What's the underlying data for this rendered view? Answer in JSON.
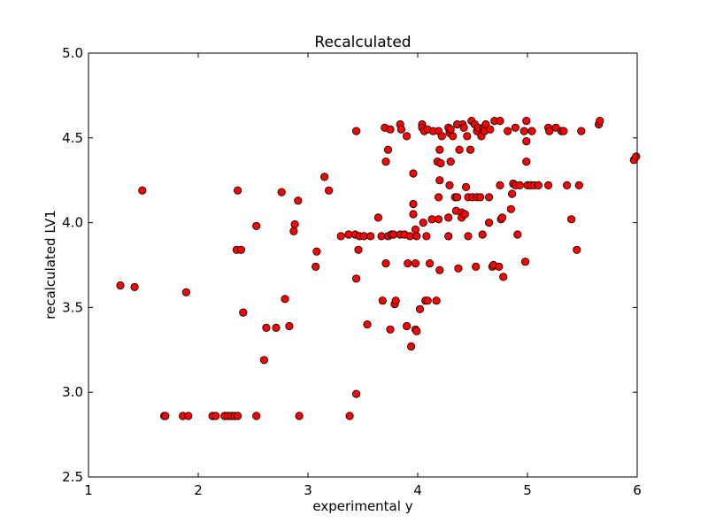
{
  "chart_data": {
    "type": "scatter",
    "title": "Recalculated",
    "xlabel": "experimental y",
    "ylabel": "recalculated LV1",
    "xlim": [
      1,
      6
    ],
    "ylim": [
      2.5,
      5.0
    ],
    "xticks": [
      "1",
      "2",
      "3",
      "4",
      "5",
      "6"
    ],
    "yticks": [
      "2.5",
      "3.0",
      "3.5",
      "4.0",
      "4.5",
      "5.0"
    ],
    "grid": false,
    "marker_color": "#ff0000",
    "marker_edge_color": "#000000",
    "series": [
      {
        "points": [
          [
            1.29,
            3.63
          ],
          [
            1.42,
            3.62
          ],
          [
            1.49,
            4.19
          ],
          [
            1.69,
            2.86
          ],
          [
            1.7,
            2.86
          ],
          [
            1.86,
            2.86
          ],
          [
            1.89,
            3.59
          ],
          [
            1.91,
            2.86
          ],
          [
            2.13,
            2.86
          ],
          [
            2.16,
            2.86
          ],
          [
            2.24,
            2.86
          ],
          [
            2.27,
            2.86
          ],
          [
            2.3,
            2.86
          ],
          [
            2.33,
            2.86
          ],
          [
            2.36,
            2.86
          ],
          [
            2.35,
            3.84
          ],
          [
            2.36,
            4.19
          ],
          [
            2.39,
            3.84
          ],
          [
            2.41,
            3.47
          ],
          [
            2.53,
            3.98
          ],
          [
            2.53,
            2.86
          ],
          [
            2.6,
            3.19
          ],
          [
            2.62,
            3.38
          ],
          [
            2.71,
            3.38
          ],
          [
            2.76,
            4.18
          ],
          [
            2.79,
            3.55
          ],
          [
            2.83,
            3.39
          ],
          [
            2.87,
            3.95
          ],
          [
            2.88,
            3.99
          ],
          [
            2.91,
            4.13
          ],
          [
            2.92,
            2.86
          ],
          [
            3.07,
            3.74
          ],
          [
            3.08,
            3.83
          ],
          [
            3.15,
            4.27
          ],
          [
            3.19,
            4.19
          ],
          [
            3.3,
            3.92
          ],
          [
            3.37,
            3.93
          ],
          [
            3.38,
            2.86
          ],
          [
            3.43,
            3.93
          ],
          [
            3.44,
            2.99
          ],
          [
            3.44,
            3.67
          ],
          [
            3.44,
            4.54
          ],
          [
            3.46,
            3.84
          ],
          [
            3.47,
            3.92
          ],
          [
            3.51,
            3.92
          ],
          [
            3.54,
            3.4
          ],
          [
            3.57,
            3.92
          ],
          [
            3.64,
            4.03
          ],
          [
            3.67,
            3.92
          ],
          [
            3.68,
            3.54
          ],
          [
            3.7,
            4.56
          ],
          [
            3.71,
            3.76
          ],
          [
            3.71,
            4.36
          ],
          [
            3.73,
            3.92
          ],
          [
            3.73,
            4.43
          ],
          [
            3.75,
            3.37
          ],
          [
            3.75,
            4.55
          ],
          [
            3.76,
            3.93
          ],
          [
            3.78,
            3.93
          ],
          [
            3.79,
            3.52
          ],
          [
            3.8,
            3.54
          ],
          [
            3.84,
            4.58
          ],
          [
            3.84,
            3.93
          ],
          [
            3.85,
            4.55
          ],
          [
            3.88,
            3.93
          ],
          [
            3.9,
            3.39
          ],
          [
            3.9,
            4.51
          ],
          [
            3.91,
            3.76
          ],
          [
            3.93,
            3.92
          ],
          [
            3.94,
            3.27
          ],
          [
            3.96,
            4.29
          ],
          [
            3.96,
            4.11
          ],
          [
            3.96,
            4.05
          ],
          [
            3.98,
            3.76
          ],
          [
            3.98,
            3.96
          ],
          [
            3.98,
            3.37
          ],
          [
            3.99,
            3.36
          ],
          [
            3.99,
            3.92
          ],
          [
            4.02,
            3.49
          ],
          [
            4.04,
            4.58
          ],
          [
            4.04,
            4.56
          ],
          [
            4.05,
            4.0
          ],
          [
            4.06,
            4.54
          ],
          [
            4.07,
            3.54
          ],
          [
            4.08,
            3.92
          ],
          [
            4.09,
            4.55
          ],
          [
            4.09,
            3.54
          ],
          [
            4.11,
            3.76
          ],
          [
            4.13,
            4.02
          ],
          [
            4.14,
            4.54
          ],
          [
            4.17,
            3.54
          ],
          [
            4.18,
            4.36
          ],
          [
            4.19,
            4.54
          ],
          [
            4.19,
            4.15
          ],
          [
            4.19,
            4.02
          ],
          [
            4.2,
            3.72
          ],
          [
            4.2,
            4.25
          ],
          [
            4.2,
            4.43
          ],
          [
            4.21,
            4.35
          ],
          [
            4.22,
            4.51
          ],
          [
            4.28,
            3.92
          ],
          [
            4.28,
            4.03
          ],
          [
            4.28,
            4.56
          ],
          [
            4.29,
            4.53
          ],
          [
            4.29,
            4.22
          ],
          [
            4.3,
            4.36
          ],
          [
            4.3,
            4.55
          ],
          [
            4.32,
            4.51
          ],
          [
            4.34,
            4.15
          ],
          [
            4.35,
            4.07
          ],
          [
            4.36,
            4.15
          ],
          [
            4.36,
            4.58
          ],
          [
            4.37,
            3.73
          ],
          [
            4.38,
            4.43
          ],
          [
            4.4,
            4.06
          ],
          [
            4.4,
            4.03
          ],
          [
            4.41,
            4.58
          ],
          [
            4.42,
            4.56
          ],
          [
            4.43,
            4.05
          ],
          [
            4.44,
            4.21
          ],
          [
            4.45,
            4.51
          ],
          [
            4.46,
            3.92
          ],
          [
            4.46,
            4.15
          ],
          [
            4.48,
            4.43
          ],
          [
            4.49,
            4.6
          ],
          [
            4.5,
            4.15
          ],
          [
            4.52,
            4.58
          ],
          [
            4.53,
            3.74
          ],
          [
            4.54,
            4.15
          ],
          [
            4.54,
            4.54
          ],
          [
            4.55,
            4.56
          ],
          [
            4.57,
            4.15
          ],
          [
            4.58,
            4.51
          ],
          [
            4.59,
            3.93
          ],
          [
            4.6,
            4.56
          ],
          [
            4.61,
            4.54
          ],
          [
            4.62,
            4.58
          ],
          [
            4.65,
            4.15
          ],
          [
            4.65,
            4.0
          ],
          [
            4.66,
            4.55
          ],
          [
            4.68,
            3.74
          ],
          [
            4.69,
            3.75
          ],
          [
            4.7,
            4.6
          ],
          [
            4.74,
            3.74
          ],
          [
            4.75,
            4.22
          ],
          [
            4.75,
            4.6
          ],
          [
            4.76,
            4.02
          ],
          [
            4.77,
            4.03
          ],
          [
            4.78,
            3.68
          ],
          [
            4.82,
            4.54
          ],
          [
            4.85,
            4.08
          ],
          [
            4.86,
            4.17
          ],
          [
            4.87,
            4.23
          ],
          [
            4.89,
            4.22
          ],
          [
            4.89,
            4.56
          ],
          [
            4.91,
            3.93
          ],
          [
            4.93,
            4.22
          ],
          [
            4.97,
            4.54
          ],
          [
            4.98,
            3.77
          ],
          [
            4.99,
            4.48
          ],
          [
            4.99,
            4.36
          ],
          [
            4.99,
            4.6
          ],
          [
            5.0,
            4.22
          ],
          [
            5.03,
            4.22
          ],
          [
            5.04,
            4.54
          ],
          [
            5.06,
            4.22
          ],
          [
            5.1,
            4.22
          ],
          [
            5.19,
            4.22
          ],
          [
            5.19,
            4.56
          ],
          [
            5.2,
            4.54
          ],
          [
            5.26,
            4.56
          ],
          [
            5.31,
            4.54
          ],
          [
            5.33,
            4.54
          ],
          [
            5.36,
            4.22
          ],
          [
            5.4,
            4.02
          ],
          [
            5.45,
            3.84
          ],
          [
            5.47,
            4.22
          ],
          [
            5.49,
            4.54
          ],
          [
            5.65,
            4.58
          ],
          [
            5.66,
            4.6
          ],
          [
            5.97,
            4.37
          ],
          [
            5.99,
            4.39
          ]
        ]
      }
    ]
  }
}
